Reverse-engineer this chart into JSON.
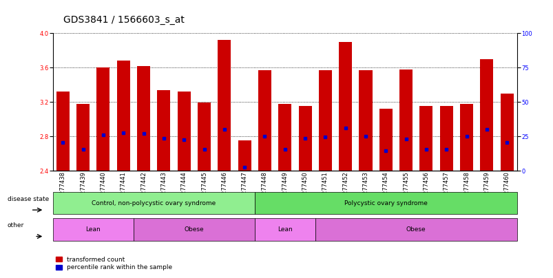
{
  "title": "GDS3841 / 1566603_s_at",
  "samples": [
    "GSM277438",
    "GSM277439",
    "GSM277440",
    "GSM277441",
    "GSM277442",
    "GSM277443",
    "GSM277444",
    "GSM277445",
    "GSM277446",
    "GSM277447",
    "GSM277448",
    "GSM277449",
    "GSM277450",
    "GSM277451",
    "GSM277452",
    "GSM277453",
    "GSM277454",
    "GSM277455",
    "GSM277456",
    "GSM277457",
    "GSM277458",
    "GSM277459",
    "GSM277460"
  ],
  "bar_values": [
    3.32,
    3.18,
    3.6,
    3.68,
    3.62,
    3.34,
    3.32,
    3.19,
    3.92,
    2.75,
    3.57,
    3.18,
    3.15,
    3.57,
    3.9,
    3.57,
    3.12,
    3.58,
    3.15,
    3.15,
    3.18,
    3.7,
    3.3
  ],
  "percentile_values": [
    2.73,
    2.65,
    2.82,
    2.84,
    2.83,
    2.78,
    2.76,
    2.65,
    2.88,
    2.44,
    2.8,
    2.65,
    2.78,
    2.79,
    2.9,
    2.8,
    2.63,
    2.77,
    2.65,
    2.65,
    2.8,
    2.88,
    2.73
  ],
  "ylim_left": [
    2.4,
    4.0
  ],
  "ylim_right": [
    0,
    100
  ],
  "yticks_left": [
    2.4,
    2.8,
    3.2,
    3.6,
    4.0
  ],
  "yticks_right": [
    0,
    25,
    50,
    75,
    100
  ],
  "bar_color": "#cc0000",
  "dot_color": "#0000cc",
  "bar_bottom": 2.4,
  "disease_state_groups": [
    {
      "label": "Control, non-polycystic ovary syndrome",
      "start": 0,
      "end": 10,
      "color": "#90ee90"
    },
    {
      "label": "Polycystic ovary syndrome",
      "start": 10,
      "end": 23,
      "color": "#66dd66"
    }
  ],
  "other_groups": [
    {
      "label": "Lean",
      "start": 0,
      "end": 4,
      "color": "#ee82ee"
    },
    {
      "label": "Obese",
      "start": 4,
      "end": 10,
      "color": "#da70d6"
    },
    {
      "label": "Lean",
      "start": 10,
      "end": 13,
      "color": "#ee82ee"
    },
    {
      "label": "Obese",
      "start": 13,
      "end": 23,
      "color": "#da70d6"
    }
  ],
  "legend_items": [
    {
      "label": "transformed count",
      "color": "#cc0000"
    },
    {
      "label": "percentile rank within the sample",
      "color": "#0000cc"
    }
  ],
  "title_fontsize": 10,
  "tick_fontsize": 6,
  "group_fontsize": 6.5
}
